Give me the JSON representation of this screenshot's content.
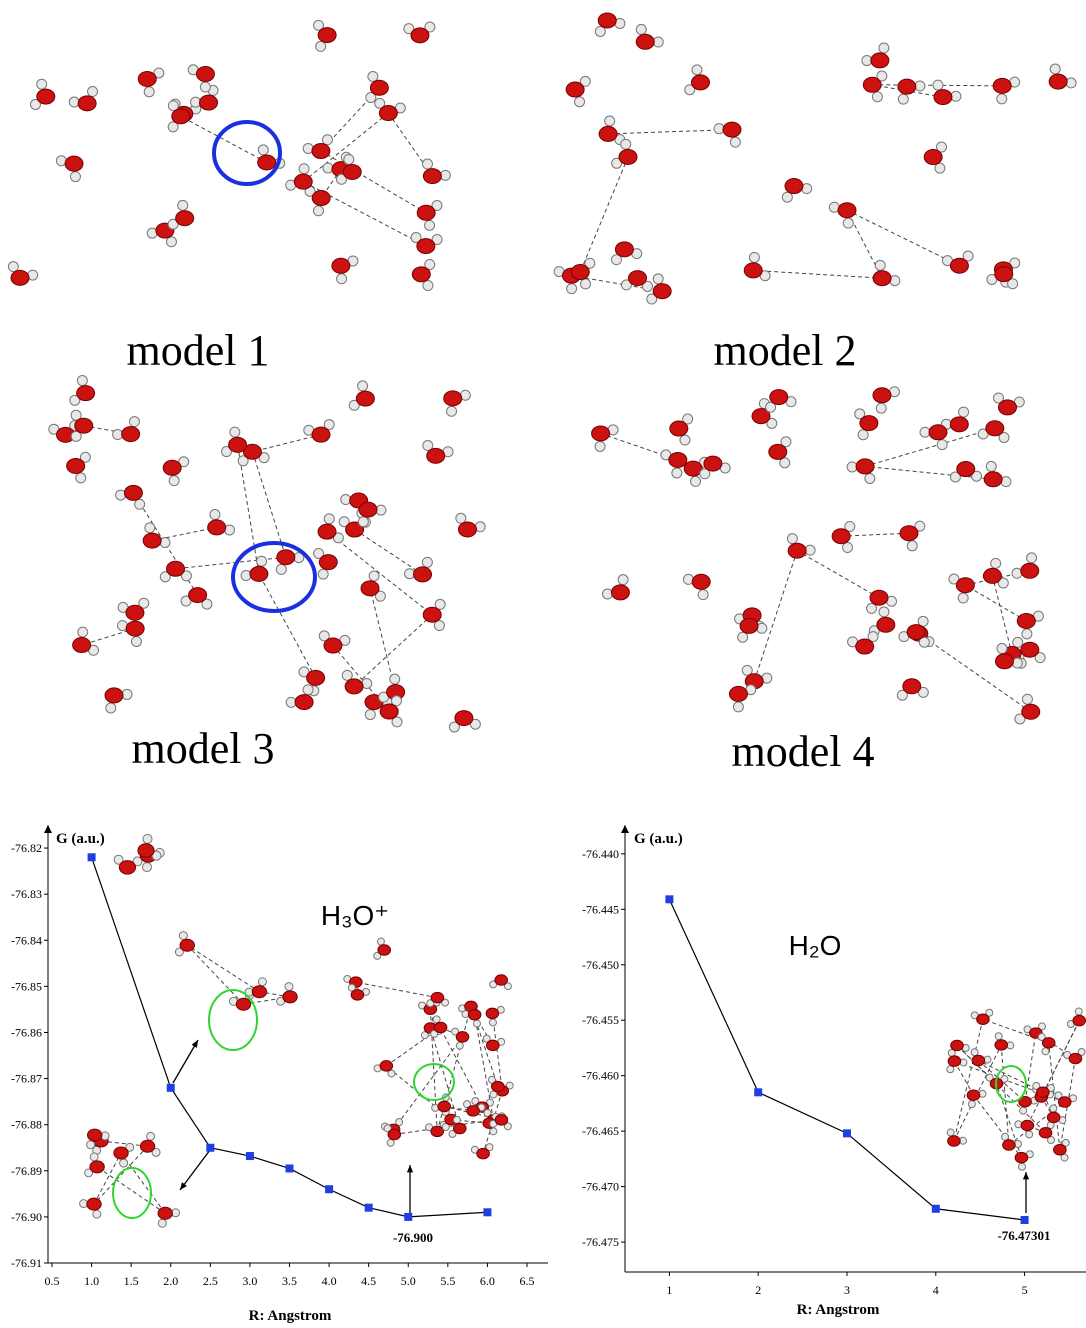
{
  "models": [
    "model 1",
    "model 2",
    "model 3",
    "model 4"
  ],
  "chart_data": [
    {
      "type": "line",
      "species": "H₃O⁺",
      "y_label": "G (a.u.)",
      "x_label": "R: Angstrom",
      "annotation": "-76.900",
      "x": [
        1.0,
        2.0,
        2.5,
        3.0,
        3.5,
        4.0,
        4.5,
        5.0,
        6.0
      ],
      "series": [
        {
          "color": "#1f3fe0",
          "values": [
            -76.822,
            -76.872,
            -76.885,
            -76.8868,
            -76.8895,
            -76.894,
            -76.898,
            -76.9,
            -76.899
          ]
        }
      ],
      "xlim": [
        0.5,
        6.5
      ],
      "xticks": [
        {
          "value": 0.5,
          "label": "0.5"
        },
        {
          "value": 1,
          "label": "1.0"
        },
        {
          "value": 1.5,
          "label": "1.5"
        },
        {
          "value": 2,
          "label": "2.0"
        },
        {
          "value": 2.5,
          "label": "2.5"
        },
        {
          "value": 3,
          "label": "3.0"
        },
        {
          "value": 3.5,
          "label": "3.5"
        },
        {
          "value": 4,
          "label": "4.0"
        },
        {
          "value": 4.5,
          "label": "4.5"
        },
        {
          "value": 5,
          "label": "5.0"
        },
        {
          "value": 5.5,
          "label": "5.5"
        },
        {
          "value": 6,
          "label": "6.0"
        },
        {
          "value": 6.5,
          "label": "6.5"
        }
      ],
      "ylim": [
        -76.815,
        -76.91
      ],
      "yticks": [
        -76.82,
        -76.83,
        -76.84,
        -76.85,
        -76.86,
        -76.87,
        -76.88,
        -76.89,
        {
          "value": -76.9,
          "label": "-76.90"
        },
        -76.91
      ]
    },
    {
      "type": "line",
      "species": "H₂O",
      "y_label": "G (a.u.)",
      "x_label": "R: Angstrom",
      "annotation": "-76.47301",
      "x": [
        1,
        2,
        3,
        4,
        5
      ],
      "series": [
        {
          "color": "#1f3fe0",
          "values": [
            -76.4441,
            -76.4615,
            -76.4652,
            -76.472,
            -76.47301
          ]
        }
      ],
      "xlim": [
        0.5,
        5.5
      ],
      "xticks": [
        1,
        2,
        3,
        4,
        5
      ],
      "ylim": [
        -76.4374,
        -76.4777
      ],
      "yticks": [
        {
          "value": -76.44,
          "label": "-76.440"
        },
        -76.445,
        {
          "value": -76.45,
          "label": "-76.450"
        },
        -76.455,
        {
          "value": -76.46,
          "label": "-76.460"
        },
        -76.465,
        {
          "value": -76.47,
          "label": "-76.470"
        },
        -76.475
      ]
    }
  ]
}
